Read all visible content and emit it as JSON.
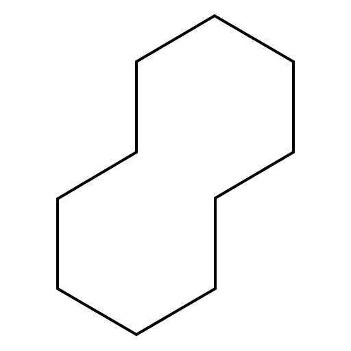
{
  "diagram": {
    "type": "skeletal-structure",
    "ring_size": 10,
    "atoms": [
      {
        "id": "C1"
      },
      {
        "id": "C2"
      },
      {
        "id": "C3"
      },
      {
        "id": "C4"
      },
      {
        "id": "C5"
      },
      {
        "id": "C6"
      },
      {
        "id": "C7"
      },
      {
        "id": "C8"
      },
      {
        "id": "C9"
      },
      {
        "id": "C10"
      }
    ],
    "bonds": [
      {
        "from": "C1",
        "to": "C2",
        "order": 1
      },
      {
        "from": "C2",
        "to": "C3",
        "order": 1
      },
      {
        "from": "C3",
        "to": "C4",
        "order": 1
      },
      {
        "from": "C4",
        "to": "C5",
        "order": 1
      },
      {
        "from": "C5",
        "to": "C6",
        "order": 1
      },
      {
        "from": "C6",
        "to": "C7",
        "order": 1
      },
      {
        "from": "C7",
        "to": "C8",
        "order": 1
      },
      {
        "from": "C8",
        "to": "C9",
        "order": 1
      },
      {
        "from": "C9",
        "to": "C10",
        "order": 1
      },
      {
        "from": "C10",
        "to": "C1",
        "order": 1
      }
    ],
    "colors": {
      "background": "#ffffff",
      "bond": "#000000"
    }
  }
}
